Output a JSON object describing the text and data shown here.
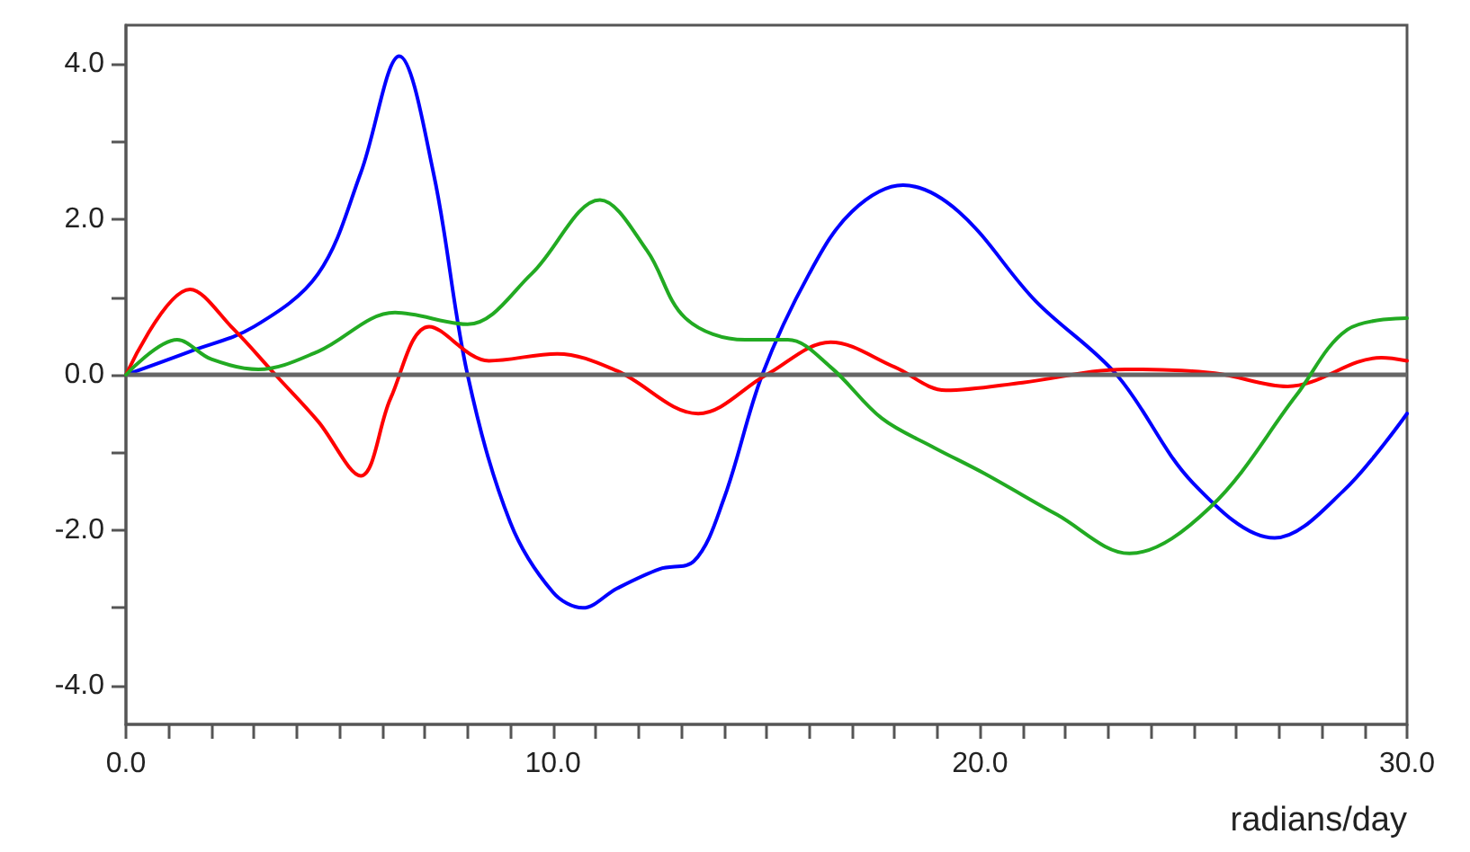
{
  "chart_data": {
    "type": "line",
    "xlabel": "radians/day",
    "xlim": [
      0,
      30
    ],
    "ylim": [
      -4.5,
      4.5
    ],
    "xticks": [
      {
        "value": 0,
        "label": "0.0"
      },
      {
        "value": 1,
        "label": null
      },
      {
        "value": 2,
        "label": null
      },
      {
        "value": 3,
        "label": null
      },
      {
        "value": 4,
        "label": null
      },
      {
        "value": 5,
        "label": null
      },
      {
        "value": 6,
        "label": null
      },
      {
        "value": 7,
        "label": null
      },
      {
        "value": 8,
        "label": null
      },
      {
        "value": 9,
        "label": null
      },
      {
        "value": 10,
        "label": "10.0"
      },
      {
        "value": 11,
        "label": null
      },
      {
        "value": 12,
        "label": null
      },
      {
        "value": 13,
        "label": null
      },
      {
        "value": 14,
        "label": null
      },
      {
        "value": 15,
        "label": null
      },
      {
        "value": 16,
        "label": null
      },
      {
        "value": 17,
        "label": null
      },
      {
        "value": 18,
        "label": null
      },
      {
        "value": 19,
        "label": null
      },
      {
        "value": 20,
        "label": "20.0"
      },
      {
        "value": 21,
        "label": null
      },
      {
        "value": 22,
        "label": null
      },
      {
        "value": 23,
        "label": null
      },
      {
        "value": 24,
        "label": null
      },
      {
        "value": 25,
        "label": null
      },
      {
        "value": 26,
        "label": null
      },
      {
        "value": 27,
        "label": null
      },
      {
        "value": 28,
        "label": null
      },
      {
        "value": 29,
        "label": null
      },
      {
        "value": 30,
        "label": "30.0"
      }
    ],
    "yticks": [
      {
        "value": -4,
        "label": "-4.0"
      },
      {
        "value": -3,
        "label": null
      },
      {
        "value": -2,
        "label": "-2.0"
      },
      {
        "value": -1,
        "label": null
      },
      {
        "value": 0,
        "label": "0.0"
      },
      {
        "value": 1,
        "label": null
      },
      {
        "value": 2,
        "label": "2.0"
      },
      {
        "value": 3,
        "label": null
      },
      {
        "value": 4,
        "label": "4.0"
      }
    ],
    "grid": false,
    "marker": "none",
    "line_style": "solid",
    "ref_lines": [
      {
        "axis": "y",
        "value": 0,
        "color": "#666666"
      }
    ],
    "series": [
      {
        "color": "#0000ff",
        "x": [
          0,
          1.5,
          3,
          4.5,
          5.5,
          6.4,
          7.2,
          8,
          9,
          10,
          10.7,
          11.5,
          12.5,
          13.3,
          14,
          14.9,
          16,
          17,
          18.2,
          19.5,
          21.3,
          23.2,
          25,
          26.9,
          28.5,
          30
        ],
        "values": [
          0,
          0.3,
          0.62,
          1.3,
          2.6,
          4.1,
          2.6,
          0,
          -1.9,
          -2.8,
          -3,
          -2.75,
          -2.5,
          -2.4,
          -1.6,
          0,
          1.3,
          2.1,
          2.44,
          2.1,
          0.95,
          0,
          -1.4,
          -2.1,
          -1.5,
          -0.5
        ]
      },
      {
        "color": "#ff0000",
        "x": [
          0,
          1.5,
          2.5,
          3.5,
          4.5,
          5.5,
          6.2,
          7.1,
          8.5,
          10.1,
          11.5,
          13.4,
          15,
          16.5,
          18,
          19.2,
          21,
          23.4,
          25.5,
          27.2,
          29.4,
          30
        ],
        "values": [
          0,
          1.1,
          0.6,
          0,
          -0.6,
          -1.3,
          -0.3,
          0.62,
          0.18,
          0.27,
          0.05,
          -0.5,
          0,
          0.42,
          0.1,
          -0.2,
          -0.1,
          0.07,
          0.02,
          -0.15,
          0.22,
          0.18
        ]
      },
      {
        "color": "#22aa22",
        "x": [
          0,
          1.2,
          2,
          3.1,
          4.5,
          6.3,
          8,
          9.5,
          11.1,
          12.2,
          13.1,
          14.5,
          15.5,
          16.5,
          17.7,
          18.9,
          20.1,
          21.8,
          23.5,
          25.4,
          27.4,
          28.6,
          30
        ],
        "values": [
          0,
          0.45,
          0.2,
          0.07,
          0.3,
          0.8,
          0.65,
          1.3,
          2.25,
          1.6,
          0.73,
          0.45,
          0.45,
          0.1,
          -0.56,
          -0.93,
          -1.27,
          -1.8,
          -2.3,
          -1.7,
          -0.27,
          0.58,
          0.73
        ]
      }
    ]
  }
}
